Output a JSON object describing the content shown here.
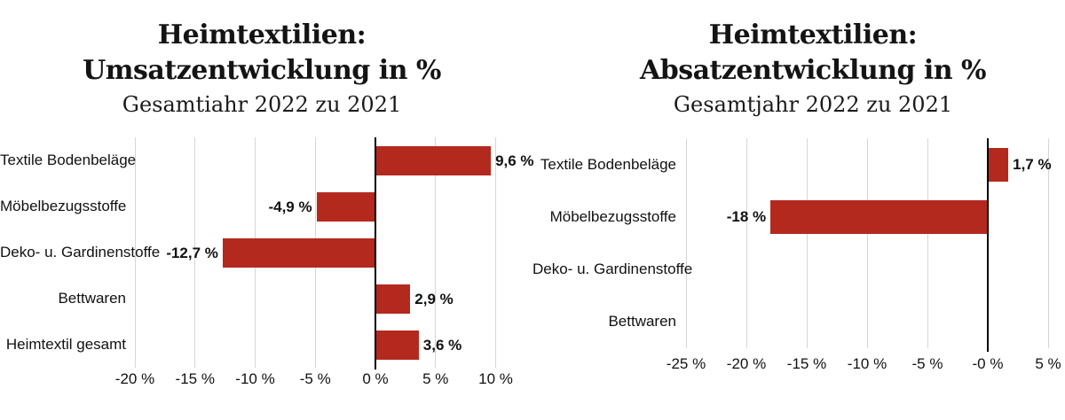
{
  "page": {
    "background": "#ffffff"
  },
  "chart_data": [
    {
      "type": "bar",
      "orientation": "horizontal",
      "title_lines": [
        "Heimtextilien:",
        "Umsatzentwicklung in %"
      ],
      "subtitle": "Gesamtiahr 2022 zu 2021",
      "categories": [
        "Textile Bodenbeläge",
        "Möbelbezugsstoffe",
        "Deko- u. Gardinenstoffe",
        "Bettwaren",
        "Heimtextil gesamt"
      ],
      "values": [
        9.6,
        -4.9,
        -12.7,
        2.9,
        3.6
      ],
      "value_labels": [
        "9,6 %",
        "-4,9 %",
        "-12,7 %",
        "2,9 %",
        "3,6 %"
      ],
      "x_ticks": [
        -20,
        -15,
        -10,
        -5,
        0,
        5,
        10
      ],
      "x_tick_labels": [
        "-20 %",
        "-15 %",
        "-10 %",
        "-5 %",
        "0 %",
        "5 %",
        "10 %"
      ],
      "xlim": [
        -20.9,
        12.4
      ],
      "grid": "vertical",
      "legend": null,
      "bar_color": "#b4291e",
      "zero_line_color": "#000000",
      "gridline_color": "#d6d6d6",
      "text_color": "#111111"
    },
    {
      "type": "bar",
      "orientation": "horizontal",
      "title_lines": [
        "Heimtextilien:",
        "Absatzentwicklung in %"
      ],
      "subtitle": "Gesamtjahr 2022 zu 2021",
      "categories": [
        "Textile Bodenbeläge",
        "Möbelbezugsstoffe",
        "Deko- u. Gardinenstoffe",
        "Bettwaren"
      ],
      "values": [
        1.7,
        -18,
        null,
        null
      ],
      "value_labels": [
        "1,7 %",
        "-18 %",
        null,
        null
      ],
      "x_ticks": [
        -25,
        -20,
        -15,
        -10,
        -5,
        0,
        5
      ],
      "x_tick_labels": [
        "-25 %",
        "-20 %",
        "-15 %",
        "-10 %",
        "-5 %",
        "-0 %",
        "5 %"
      ],
      "xlim": [
        -25.6,
        5.7
      ],
      "grid": "vertical",
      "legend": null,
      "bar_color": "#b4291e",
      "zero_line_color": "#000000",
      "gridline_color": "#d6d6d6",
      "text_color": "#111111"
    }
  ]
}
